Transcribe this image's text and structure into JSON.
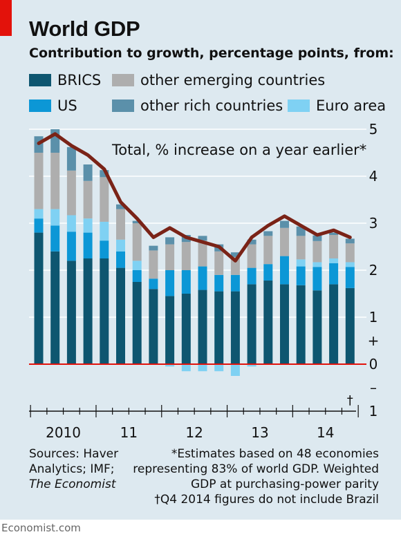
{
  "header": {
    "title": "World GDP",
    "subtitle": "Contribution to growth, percentage points, from:"
  },
  "legend": [
    {
      "label": "BRICS",
      "color": "#0e5670"
    },
    {
      "label": "other emerging countries",
      "color": "#aeaeae"
    },
    {
      "label": "US",
      "color": "#0c97d6"
    },
    {
      "label": "other rich countries",
      "color": "#5b90aa"
    },
    {
      "label": "Euro area",
      "color": "#7fd1f3"
    }
  ],
  "chart_data": {
    "type": "bar",
    "stacked": true,
    "annotation": "Total, % increase on a year earlier*",
    "dagger_marker": "†",
    "y_ticks": [
      "5",
      "4",
      "3",
      "2",
      "1",
      "+",
      "0",
      "–",
      "1"
    ],
    "ylim": [
      -1,
      5
    ],
    "x_year_labels": [
      "2010",
      "11",
      "12",
      "13",
      "14"
    ],
    "quarters": [
      "2010Q1",
      "2010Q2",
      "2010Q3",
      "2010Q4",
      "2011Q1",
      "2011Q2",
      "2011Q3",
      "2011Q4",
      "2012Q1",
      "2012Q2",
      "2012Q3",
      "2012Q4",
      "2013Q1",
      "2013Q2",
      "2013Q3",
      "2013Q4",
      "2014Q1",
      "2014Q2",
      "2014Q3",
      "2014Q4"
    ],
    "series": [
      {
        "name": "BRICS",
        "color": "#0e5670",
        "values": [
          2.8,
          2.4,
          2.2,
          2.25,
          2.25,
          2.05,
          1.75,
          1.6,
          1.45,
          1.5,
          1.58,
          1.55,
          1.55,
          1.7,
          1.78,
          1.7,
          1.68,
          1.57,
          1.7,
          1.62
        ]
      },
      {
        "name": "US",
        "color": "#0c97d6",
        "values": [
          0.3,
          0.55,
          0.62,
          0.55,
          0.38,
          0.35,
          0.25,
          0.22,
          0.55,
          0.5,
          0.5,
          0.35,
          0.35,
          0.35,
          0.35,
          0.6,
          0.4,
          0.5,
          0.45,
          0.45
        ]
      },
      {
        "name": "Euro area",
        "color": "#7fd1f3",
        "values": [
          0.2,
          0.35,
          0.35,
          0.3,
          0.4,
          0.25,
          0.2,
          0.0,
          -0.05,
          -0.15,
          -0.15,
          -0.15,
          -0.25,
          -0.05,
          0.0,
          0.0,
          0.15,
          0.1,
          0.1,
          0.1
        ]
      },
      {
        "name": "other emerging countries",
        "color": "#aeaeae",
        "values": [
          1.2,
          1.2,
          0.95,
          0.8,
          0.95,
          0.65,
          0.8,
          0.6,
          0.55,
          0.6,
          0.55,
          0.5,
          0.38,
          0.5,
          0.6,
          0.6,
          0.5,
          0.45,
          0.5,
          0.4
        ]
      },
      {
        "name": "other rich countries",
        "color": "#5b90aa",
        "values": [
          0.35,
          0.5,
          0.5,
          0.35,
          0.15,
          0.1,
          0.05,
          0.1,
          0.15,
          0.15,
          0.1,
          0.15,
          0.1,
          0.1,
          0.1,
          0.15,
          0.2,
          0.12,
          0.05,
          0.1
        ]
      }
    ],
    "total": {
      "name": "Total",
      "color": "#7a2317",
      "values": [
        4.7,
        4.9,
        4.65,
        4.45,
        4.15,
        3.45,
        3.1,
        2.7,
        2.9,
        2.7,
        2.6,
        2.5,
        2.2,
        2.7,
        2.95,
        3.15,
        2.95,
        2.75,
        2.85,
        2.7
      ]
    }
  },
  "sources": {
    "line1": "Sources: Haver",
    "line2": "Analytics; IMF;",
    "line3": "The Economist"
  },
  "notes": {
    "line1": "*Estimates based on 48 economies",
    "line2": "representing 83% of world GDP. Weighted",
    "line3": "GDP at purchasing-power parity",
    "line4": "†Q4 2014 figures do not include Brazil"
  },
  "footer": {
    "text": "Economist.com"
  }
}
